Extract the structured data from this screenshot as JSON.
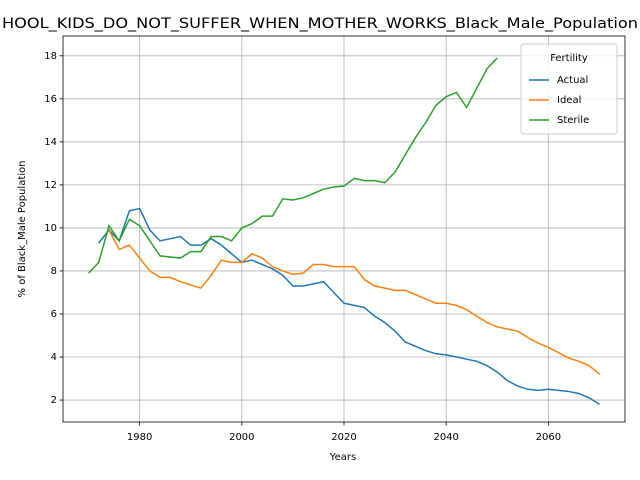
{
  "chart_data": {
    "type": "line",
    "title": "HOOL_KIDS_DO_NOT_SUFFER_WHEN_MOTHER_WORKS_Black_Male_Population",
    "x_label": "Years",
    "y_label": "% of Black_Male Population",
    "legend_title": "Fertility",
    "legend": "upper right",
    "grid": true,
    "x": [
      1970,
      1972,
      1974,
      1976,
      1978,
      1980,
      1982,
      1984,
      1986,
      1988,
      1990,
      1992,
      1994,
      1996,
      1998,
      2000,
      2002,
      2004,
      2006,
      2008,
      2010,
      2012,
      2014,
      2016,
      2018,
      2020,
      2022,
      2024,
      2026,
      2028,
      2030,
      2032,
      2034,
      2036,
      2038,
      2040,
      2042,
      2044,
      2046,
      2048,
      2050,
      2052,
      2054,
      2056,
      2058,
      2060,
      2062,
      2064,
      2066,
      2068,
      2070
    ],
    "series": [
      {
        "name": "Actual",
        "color": "#1f77b4",
        "values": [
          null,
          9.3,
          9.9,
          9.4,
          10.8,
          10.9,
          9.9,
          9.4,
          9.5,
          9.6,
          9.2,
          9.2,
          9.5,
          9.2,
          8.8,
          8.4,
          8.5,
          8.3,
          8.1,
          7.8,
          7.3,
          7.3,
          7.4,
          7.5,
          7.0,
          6.5,
          6.4,
          6.3,
          5.9,
          5.6,
          5.2,
          4.7,
          4.5,
          4.3,
          4.15,
          4.1,
          4.0,
          3.9,
          3.8,
          3.6,
          3.3,
          2.9,
          2.65,
          2.5,
          2.45,
          2.5,
          2.45,
          2.4,
          2.3,
          2.1,
          1.8
        ]
      },
      {
        "name": "Ideal",
        "color": "#ff7f0e",
        "values": [
          null,
          null,
          9.9,
          9.0,
          9.2,
          8.6,
          8.0,
          7.7,
          7.7,
          7.5,
          7.35,
          7.2,
          7.8,
          8.5,
          8.4,
          8.4,
          8.8,
          8.6,
          8.2,
          8.0,
          7.85,
          7.9,
          8.3,
          8.3,
          8.2,
          8.2,
          8.2,
          7.6,
          7.3,
          7.2,
          7.1,
          7.1,
          6.9,
          6.7,
          6.5,
          6.5,
          6.4,
          6.2,
          5.9,
          5.6,
          5.4,
          5.3,
          5.2,
          4.9,
          4.65,
          4.45,
          4.2,
          3.95,
          3.8,
          3.6,
          3.2
        ]
      },
      {
        "name": "Sterile",
        "color": "#2ca02c",
        "values": [
          7.9,
          8.4,
          10.1,
          9.4,
          10.4,
          10.1,
          9.4,
          8.7,
          8.65,
          8.6,
          8.9,
          8.9,
          9.6,
          9.6,
          9.4,
          10.0,
          10.2,
          10.55,
          10.55,
          11.35,
          11.3,
          11.4,
          11.6,
          11.8,
          11.9,
          11.95,
          12.3,
          12.2,
          12.2,
          12.1,
          12.6,
          13.4,
          14.2,
          14.9,
          15.7,
          16.1,
          16.3,
          15.6,
          16.5,
          17.4,
          17.9,
          null,
          null,
          null,
          null,
          null,
          null,
          null,
          null,
          null,
          null
        ]
      }
    ],
    "xlim": [
      1965,
      2075
    ],
    "xticks": [
      1980,
      2000,
      2020,
      2040,
      2060
    ],
    "ylim": [
      0.98,
      18.92
    ],
    "yticks": [
      2,
      4,
      6,
      8,
      10,
      12,
      14,
      16,
      18
    ]
  }
}
